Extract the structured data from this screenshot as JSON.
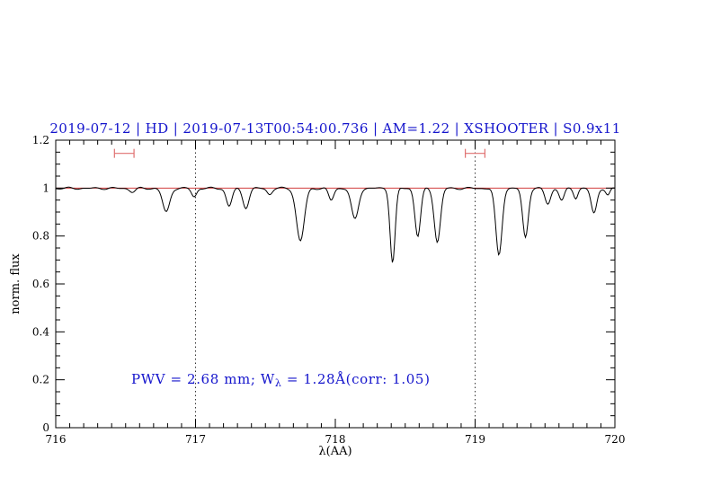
{
  "title": "2019-07-12 | HD | 2019-07-13T00:54:00.736 | AM=1.22 | XSHOOTER | S0.9x11",
  "annotation": {
    "part1": "PWV = 2.68 mm; W",
    "sub": "λ",
    "part2": " = 1.28Å(corr: 1.05)"
  },
  "axes": {
    "xlabel": "λ(AA)",
    "ylabel": "norm. flux",
    "xlim": [
      716,
      720
    ],
    "ylim": [
      0,
      1.2
    ],
    "x_ticks": [
      716,
      717,
      718,
      719,
      720
    ],
    "y_ticks": [
      0,
      0.2,
      0.4,
      0.6,
      0.8,
      1,
      1.2
    ],
    "x_minor_step": 0.1,
    "y_minor_step": 0.05
  },
  "colors": {
    "title": "#1414cc",
    "annotation": "#1414cc",
    "spectrum": "#000000",
    "continuum": "#cc2020",
    "marker": "#e07070",
    "frame": "#000000",
    "dotted": "#333333"
  },
  "chart_data": {
    "type": "line",
    "title": "2019-07-12 | HD | 2019-07-13T00:54:00.736 | AM=1.22 | XSHOOTER | S0.9x11",
    "xlabel": "λ(AA)",
    "ylabel": "norm. flux",
    "xlim": [
      716,
      720
    ],
    "ylim": [
      0,
      1.2
    ],
    "grid": false,
    "continuum_level": 1.0,
    "pwv_mm": 2.68,
    "equivalent_width_A": 1.28,
    "ew_correction": 1.05,
    "airmass": 1.22,
    "reference_lines": {
      "vertical_dotted_x": [
        717,
        719
      ],
      "horizontal_red_y": 1.0
    },
    "range_markers": [
      {
        "x1": 716.42,
        "x2": 716.56,
        "y": 1.145
      },
      {
        "x1": 718.93,
        "x2": 719.07,
        "y": 1.145
      }
    ],
    "sampling": {
      "x_start": 716,
      "x_end": 720,
      "x_step": 0.008
    },
    "noise": {
      "amp1": 0.003,
      "freq1": 37.1,
      "amp2": 0.002,
      "freq2": 61.7,
      "phase2": 2.0
    },
    "absorption_lines": [
      {
        "center": 716.55,
        "depth": 0.015,
        "sigma": 0.02
      },
      {
        "center": 716.79,
        "depth": 0.1,
        "sigma": 0.025
      },
      {
        "center": 716.99,
        "depth": 0.035,
        "sigma": 0.018
      },
      {
        "center": 717.24,
        "depth": 0.075,
        "sigma": 0.02
      },
      {
        "center": 717.36,
        "depth": 0.08,
        "sigma": 0.022
      },
      {
        "center": 717.53,
        "depth": 0.025,
        "sigma": 0.018
      },
      {
        "center": 717.75,
        "depth": 0.22,
        "sigma": 0.028
      },
      {
        "center": 717.97,
        "depth": 0.05,
        "sigma": 0.018
      },
      {
        "center": 718.14,
        "depth": 0.13,
        "sigma": 0.025
      },
      {
        "center": 718.41,
        "depth": 0.31,
        "sigma": 0.018
      },
      {
        "center": 718.59,
        "depth": 0.2,
        "sigma": 0.02
      },
      {
        "center": 718.73,
        "depth": 0.225,
        "sigma": 0.022
      },
      {
        "center": 719.17,
        "depth": 0.28,
        "sigma": 0.022
      },
      {
        "center": 719.36,
        "depth": 0.205,
        "sigma": 0.02
      },
      {
        "center": 719.52,
        "depth": 0.065,
        "sigma": 0.02
      },
      {
        "center": 719.62,
        "depth": 0.05,
        "sigma": 0.018
      },
      {
        "center": 719.72,
        "depth": 0.04,
        "sigma": 0.015
      },
      {
        "center": 719.85,
        "depth": 0.105,
        "sigma": 0.02
      },
      {
        "center": 719.95,
        "depth": 0.03,
        "sigma": 0.015
      }
    ]
  }
}
